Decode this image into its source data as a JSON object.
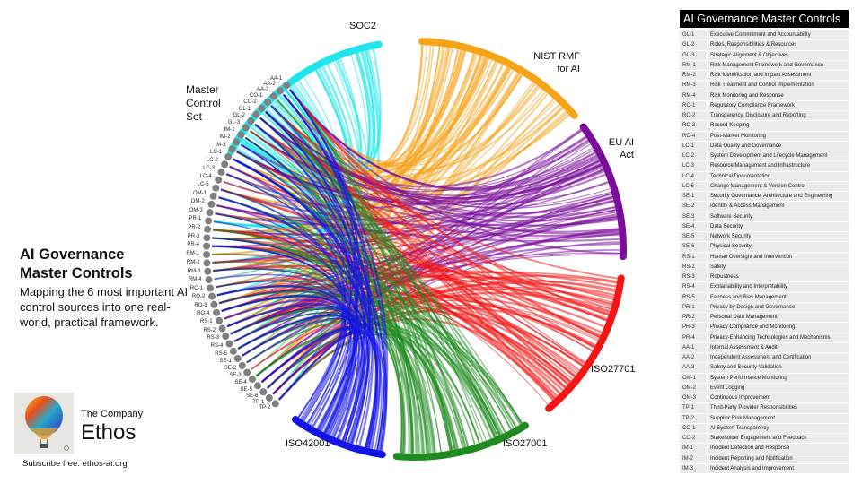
{
  "intro": {
    "title_line1": "AI Governance",
    "title_line2": "Master Controls",
    "description": "Mapping the 6 most important AI control sources into one real-world, practical framework."
  },
  "brand": {
    "company_small": "The Company",
    "company_big": "Ethos",
    "logo_icon": "hot-air-balloon-icon",
    "subscribe": "Subscribe free: ethos-ai.org"
  },
  "diagram": {
    "master_label": "Master Control Set",
    "master_label_lines": [
      "Master",
      "Control",
      "Set"
    ],
    "sources": [
      {
        "name": "SOC2",
        "color": "#1ee6ea"
      },
      {
        "name": "NIST RMF for AI",
        "lines": [
          "NIST RMF",
          "for AI"
        ],
        "color": "#f5a318"
      },
      {
        "name": "EU AI Act",
        "lines": [
          "EU AI",
          "Act"
        ],
        "color": "#7a0e9a"
      },
      {
        "name": "ISO27701",
        "color": "#f41616"
      },
      {
        "name": "ISO27001",
        "color": "#1f8a1f"
      },
      {
        "name": "ISO42001",
        "color": "#1414e6"
      }
    ],
    "node_color": "#808080",
    "nodes": [
      "AA-1",
      "AA-2",
      "AA-3",
      "CO-1",
      "CO-2",
      "GL-1",
      "GL-2",
      "GL-3",
      "IM-1",
      "IM-2",
      "IM-3",
      "LC-1",
      "LC-2",
      "LC-3",
      "LC-4",
      "LC-5",
      "OM-1",
      "OM-2",
      "OM-3",
      "PR-1",
      "PR-2",
      "PR-3",
      "PR-4",
      "RM-1",
      "RM-2",
      "RM-3",
      "RM-4",
      "RO-1",
      "RO-2",
      "RO-3",
      "RO-4",
      "RS-1",
      "RS-2",
      "RS-3",
      "RS-4",
      "RS-5",
      "SE-1",
      "SE-2",
      "SE-3",
      "SE-4",
      "SE-5",
      "SE-6",
      "TP-1",
      "TP-2"
    ]
  },
  "table": {
    "title": "AI Governance Master Controls",
    "rows": [
      {
        "code": "GL-1",
        "name": "Executive Commitment and Accountability"
      },
      {
        "code": "GL-2",
        "name": "Roles, Responsibilities & Resources"
      },
      {
        "code": "GL-3",
        "name": "Strategic Alignment & Objectives"
      },
      {
        "code": "RM-1",
        "name": "Risk Management Framework and Governance"
      },
      {
        "code": "RM-2",
        "name": "Risk Identification and Impact Assessment"
      },
      {
        "code": "RM-3",
        "name": "Risk Treatment and Control Implementation"
      },
      {
        "code": "RM-4",
        "name": "Risk Monitoring and Response"
      },
      {
        "code": "RO-1",
        "name": "Regulatory Compliance Framework"
      },
      {
        "code": "RO-2",
        "name": "Transparency, Disclosure and Reporting"
      },
      {
        "code": "RO-3",
        "name": "Record-Keeping"
      },
      {
        "code": "RO-4",
        "name": "Post-Market Monitoring"
      },
      {
        "code": "LC-1",
        "name": "Data Quality and Governance"
      },
      {
        "code": "LC-2",
        "name": "System Development and Lifecycle Management"
      },
      {
        "code": "LC-3",
        "name": "Resource Management and Infrastructure"
      },
      {
        "code": "LC-4",
        "name": "Technical Documentation"
      },
      {
        "code": "LC-5",
        "name": "Change Management & Version Control"
      },
      {
        "code": "SE-1",
        "name": "Security Governance, Architecture and Engineering"
      },
      {
        "code": "SE-2",
        "name": "Identity & Access Management"
      },
      {
        "code": "SE-3",
        "name": "Software Security"
      },
      {
        "code": "SE-4",
        "name": "Data Security"
      },
      {
        "code": "SE-5",
        "name": "Network Security"
      },
      {
        "code": "SE-6",
        "name": "Physical Security"
      },
      {
        "code": "RS-1",
        "name": "Human Oversight and Intervention"
      },
      {
        "code": "RS-2",
        "name": "Safety"
      },
      {
        "code": "RS-3",
        "name": "Robustness"
      },
      {
        "code": "RS-4",
        "name": "Explainability and Interpretability"
      },
      {
        "code": "RS-5",
        "name": "Fairness and Bias Management"
      },
      {
        "code": "PR-1",
        "name": "Privacy by Design and Governance"
      },
      {
        "code": "PR-2",
        "name": "Personal Data Management"
      },
      {
        "code": "PR-3",
        "name": "Privacy Compliance and Monitoring"
      },
      {
        "code": "PR-4",
        "name": "Privacy-Enhancing Technologies and Mechanisms"
      },
      {
        "code": "AA-1",
        "name": "Internal Assessment & Audit"
      },
      {
        "code": "AA-2",
        "name": "Independent Assessment and Certification"
      },
      {
        "code": "AA-3",
        "name": "Safety and Security Validation"
      },
      {
        "code": "OM-1",
        "name": "System Performance Monitoring"
      },
      {
        "code": "OM-2",
        "name": "Event Logging"
      },
      {
        "code": "OM-3",
        "name": "Continuous Improvement"
      },
      {
        "code": "TP-1",
        "name": "Third-Party Provider Responsibilities"
      },
      {
        "code": "TP-2",
        "name": "Supplier Risk Management"
      },
      {
        "code": "CO-1",
        "name": "AI System Transparency"
      },
      {
        "code": "CO-2",
        "name": "Stakeholder Engagement and Feedback"
      },
      {
        "code": "IM-1",
        "name": "Incident Detection and Response"
      },
      {
        "code": "IM-2",
        "name": "Incident Reporting and Notification"
      },
      {
        "code": "IM-3",
        "name": "Incident Analysis and Improvement"
      }
    ]
  }
}
